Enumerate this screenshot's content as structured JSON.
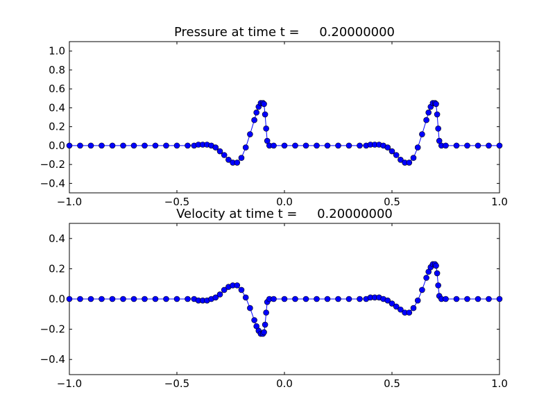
{
  "chart_data": [
    {
      "type": "line",
      "title": "Pressure at time t =     0.20000000",
      "xlabel": "",
      "ylabel": "",
      "xlim": [
        -1.0,
        1.0
      ],
      "ylim": [
        -0.5,
        1.1
      ],
      "xticks": [
        -1.0,
        -0.5,
        0.0,
        0.5,
        1.0
      ],
      "xtick_labels": [
        "−1.0",
        "−0.5",
        "0.0",
        "0.5",
        "1.0"
      ],
      "yticks": [
        -0.4,
        -0.2,
        0.0,
        0.2,
        0.4,
        0.6,
        0.8,
        1.0
      ],
      "ytick_labels": [
        "−0.4",
        "−0.2",
        "0.0",
        "0.2",
        "0.4",
        "0.6",
        "0.8",
        "1.0"
      ],
      "grid": false,
      "marker": "circle",
      "line_color": "#0000ff",
      "marker_color": "#0000ff",
      "series": [
        {
          "x": [
            -1.0,
            -0.95,
            -0.9,
            -0.85,
            -0.8,
            -0.75,
            -0.7,
            -0.65,
            -0.6,
            -0.55,
            -0.5,
            -0.45,
            -0.42,
            -0.4,
            -0.38,
            -0.36,
            -0.34,
            -0.32,
            -0.3,
            -0.28,
            -0.26,
            -0.24,
            -0.22,
            -0.2,
            -0.18,
            -0.16,
            -0.14,
            -0.13,
            -0.12,
            -0.11,
            -0.1,
            -0.095,
            -0.09,
            -0.085,
            -0.08,
            -0.07,
            -0.05,
            0.0,
            0.05,
            0.1,
            0.15,
            0.2,
            0.25,
            0.3,
            0.35,
            0.38,
            0.4,
            0.42,
            0.44,
            0.46,
            0.48,
            0.5,
            0.52,
            0.54,
            0.56,
            0.58,
            0.6,
            0.62,
            0.64,
            0.66,
            0.67,
            0.68,
            0.69,
            0.7,
            0.705,
            0.71,
            0.715,
            0.72,
            0.73,
            0.75,
            0.8,
            0.85,
            0.9,
            0.95,
            1.0
          ],
          "y": [
            0.0,
            0.0,
            0.0,
            0.0,
            0.0,
            0.0,
            0.0,
            0.0,
            0.0,
            0.0,
            0.0,
            0.0,
            0.0,
            0.01,
            0.01,
            0.01,
            0.0,
            -0.02,
            -0.06,
            -0.1,
            -0.15,
            -0.18,
            -0.18,
            -0.13,
            -0.02,
            0.12,
            0.27,
            0.35,
            0.41,
            0.45,
            0.45,
            0.44,
            0.33,
            0.18,
            0.05,
            0.0,
            0.0,
            0.0,
            0.0,
            0.0,
            0.0,
            0.0,
            0.0,
            0.0,
            0.0,
            0.0,
            0.01,
            0.01,
            0.01,
            0.0,
            -0.02,
            -0.06,
            -0.1,
            -0.15,
            -0.18,
            -0.18,
            -0.13,
            -0.02,
            0.12,
            0.27,
            0.35,
            0.41,
            0.45,
            0.45,
            0.44,
            0.33,
            0.18,
            0.05,
            0.0,
            0.0,
            0.0,
            0.0,
            0.0,
            0.0,
            0.0
          ]
        }
      ]
    },
    {
      "type": "line",
      "title": "Velocity at time t =     0.20000000",
      "xlabel": "",
      "ylabel": "",
      "xlim": [
        -1.0,
        1.0
      ],
      "ylim": [
        -0.5,
        0.5
      ],
      "xticks": [
        -1.0,
        -0.5,
        0.0,
        0.5,
        1.0
      ],
      "xtick_labels": [
        "−1.0",
        "−0.5",
        "0.0",
        "0.5",
        "1.0"
      ],
      "yticks": [
        -0.4,
        -0.2,
        0.0,
        0.2,
        0.4
      ],
      "ytick_labels": [
        "−0.4",
        "−0.2",
        "0.0",
        "0.2",
        "0.4"
      ],
      "grid": false,
      "marker": "circle",
      "line_color": "#0000ff",
      "marker_color": "#0000ff",
      "series": [
        {
          "x": [
            -1.0,
            -0.95,
            -0.9,
            -0.85,
            -0.8,
            -0.75,
            -0.7,
            -0.65,
            -0.6,
            -0.55,
            -0.5,
            -0.45,
            -0.42,
            -0.4,
            -0.38,
            -0.36,
            -0.34,
            -0.32,
            -0.3,
            -0.28,
            -0.26,
            -0.24,
            -0.22,
            -0.2,
            -0.18,
            -0.16,
            -0.14,
            -0.13,
            -0.12,
            -0.11,
            -0.1,
            -0.095,
            -0.09,
            -0.085,
            -0.08,
            -0.07,
            -0.05,
            0.0,
            0.05,
            0.1,
            0.15,
            0.2,
            0.25,
            0.3,
            0.35,
            0.38,
            0.4,
            0.42,
            0.44,
            0.46,
            0.48,
            0.5,
            0.52,
            0.54,
            0.56,
            0.58,
            0.6,
            0.62,
            0.64,
            0.66,
            0.67,
            0.68,
            0.69,
            0.7,
            0.705,
            0.71,
            0.715,
            0.72,
            0.73,
            0.75,
            0.8,
            0.85,
            0.9,
            0.95,
            1.0
          ],
          "y": [
            0.0,
            0.0,
            0.0,
            0.0,
            0.0,
            0.0,
            0.0,
            0.0,
            0.0,
            0.0,
            0.0,
            0.0,
            0.0,
            -0.01,
            -0.01,
            -0.01,
            0.0,
            0.01,
            0.03,
            0.06,
            0.08,
            0.09,
            0.09,
            0.06,
            0.01,
            -0.06,
            -0.14,
            -0.18,
            -0.21,
            -0.23,
            -0.23,
            -0.22,
            -0.17,
            -0.09,
            -0.02,
            0.0,
            0.0,
            0.0,
            0.0,
            0.0,
            0.0,
            0.0,
            0.0,
            0.0,
            0.0,
            0.0,
            0.01,
            0.01,
            0.01,
            0.0,
            -0.01,
            -0.03,
            -0.05,
            -0.07,
            -0.09,
            -0.09,
            -0.06,
            -0.01,
            0.06,
            0.14,
            0.18,
            0.21,
            0.23,
            0.23,
            0.22,
            0.17,
            0.09,
            0.02,
            0.0,
            0.0,
            0.0,
            0.0,
            0.0,
            0.0,
            0.0
          ]
        }
      ]
    }
  ]
}
